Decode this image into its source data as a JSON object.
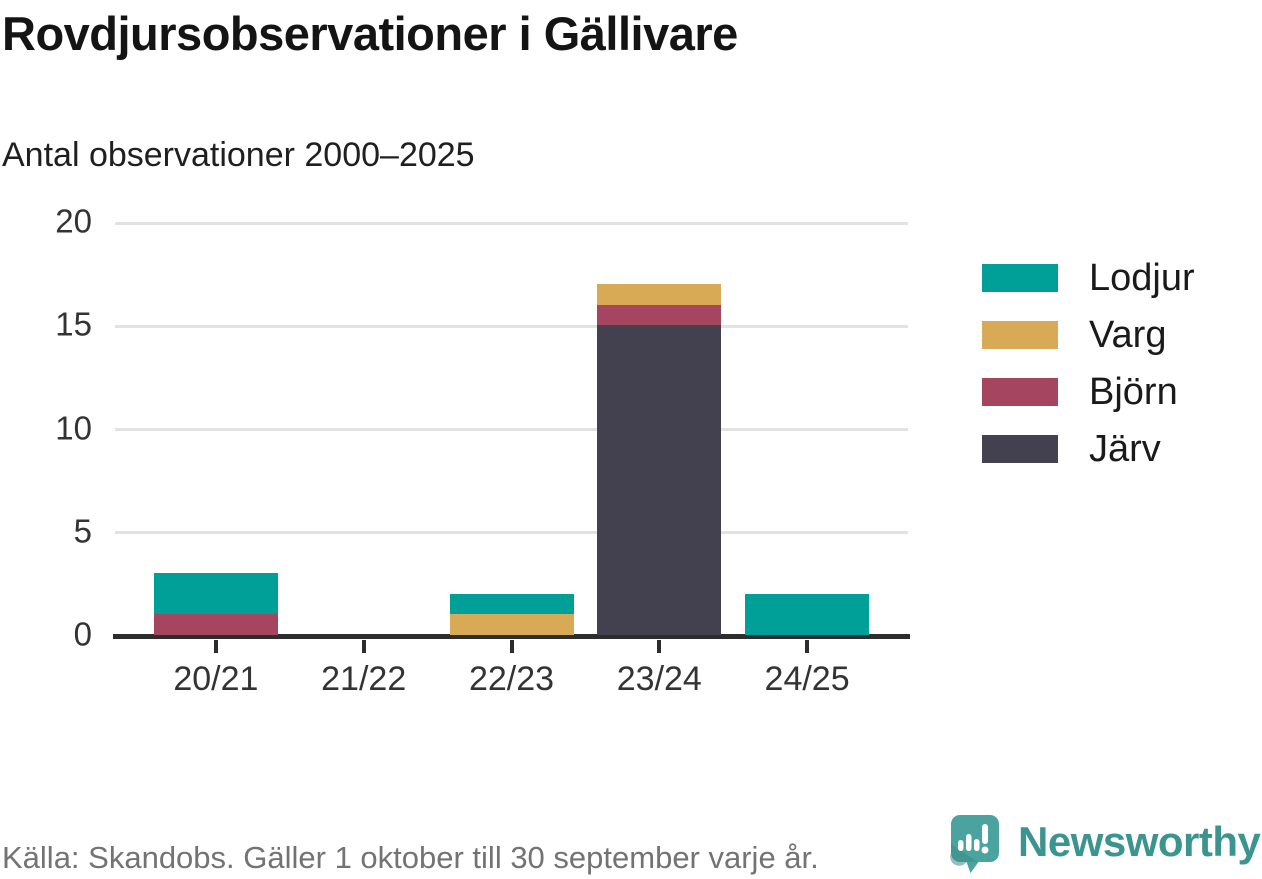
{
  "header": {
    "title": "Rovdjursobservationer i Gällivare",
    "subtitle": "Antal observationer 2000–2025"
  },
  "chart_data": {
    "type": "bar",
    "stacked": true,
    "title": "Rovdjursobservationer i Gällivare",
    "subtitle": "Antal observationer 2000–2025",
    "categories": [
      "20/21",
      "21/22",
      "22/23",
      "23/24",
      "24/25"
    ],
    "series": [
      {
        "name": "Lodjur",
        "color": "#00a099",
        "values": [
          2,
          0,
          1,
          0,
          2
        ]
      },
      {
        "name": "Varg",
        "color": "#d9aa55",
        "values": [
          0,
          0,
          1,
          1,
          0
        ]
      },
      {
        "name": "Björn",
        "color": "#a6455f",
        "values": [
          1,
          0,
          0,
          1,
          0
        ]
      },
      {
        "name": "Järv",
        "color": "#434050",
        "values": [
          0,
          0,
          0,
          15,
          0
        ]
      }
    ],
    "totals": [
      3,
      0,
      2,
      17,
      2
    ],
    "stack_order_bottom_to_top": [
      "Järv",
      "Björn",
      "Varg",
      "Lodjur"
    ],
    "y_ticks": [
      0,
      5,
      10,
      15,
      20
    ],
    "ylim": [
      0,
      20
    ],
    "xlabel": "",
    "ylabel": "",
    "grid": "horizontal",
    "legend_position": "right"
  },
  "footer": {
    "source": "Källa: Skandobs. Gäller 1 oktober till 30 september varje år."
  },
  "brand": {
    "name": "Newsworthy",
    "text_color": "#3b948e",
    "icon": "newsworthy-speech-bubble-bar-chart-icon",
    "icon_color": "#4aa39e",
    "icon_shade_color": "#3a8d88",
    "icon_glyph_color": "#ffffff"
  },
  "style_colors": {
    "gridline": "#e2e2e2",
    "axis": "#2d2d2d",
    "tick_label": "#333333",
    "title": "#141414",
    "source_text": "#737373"
  }
}
